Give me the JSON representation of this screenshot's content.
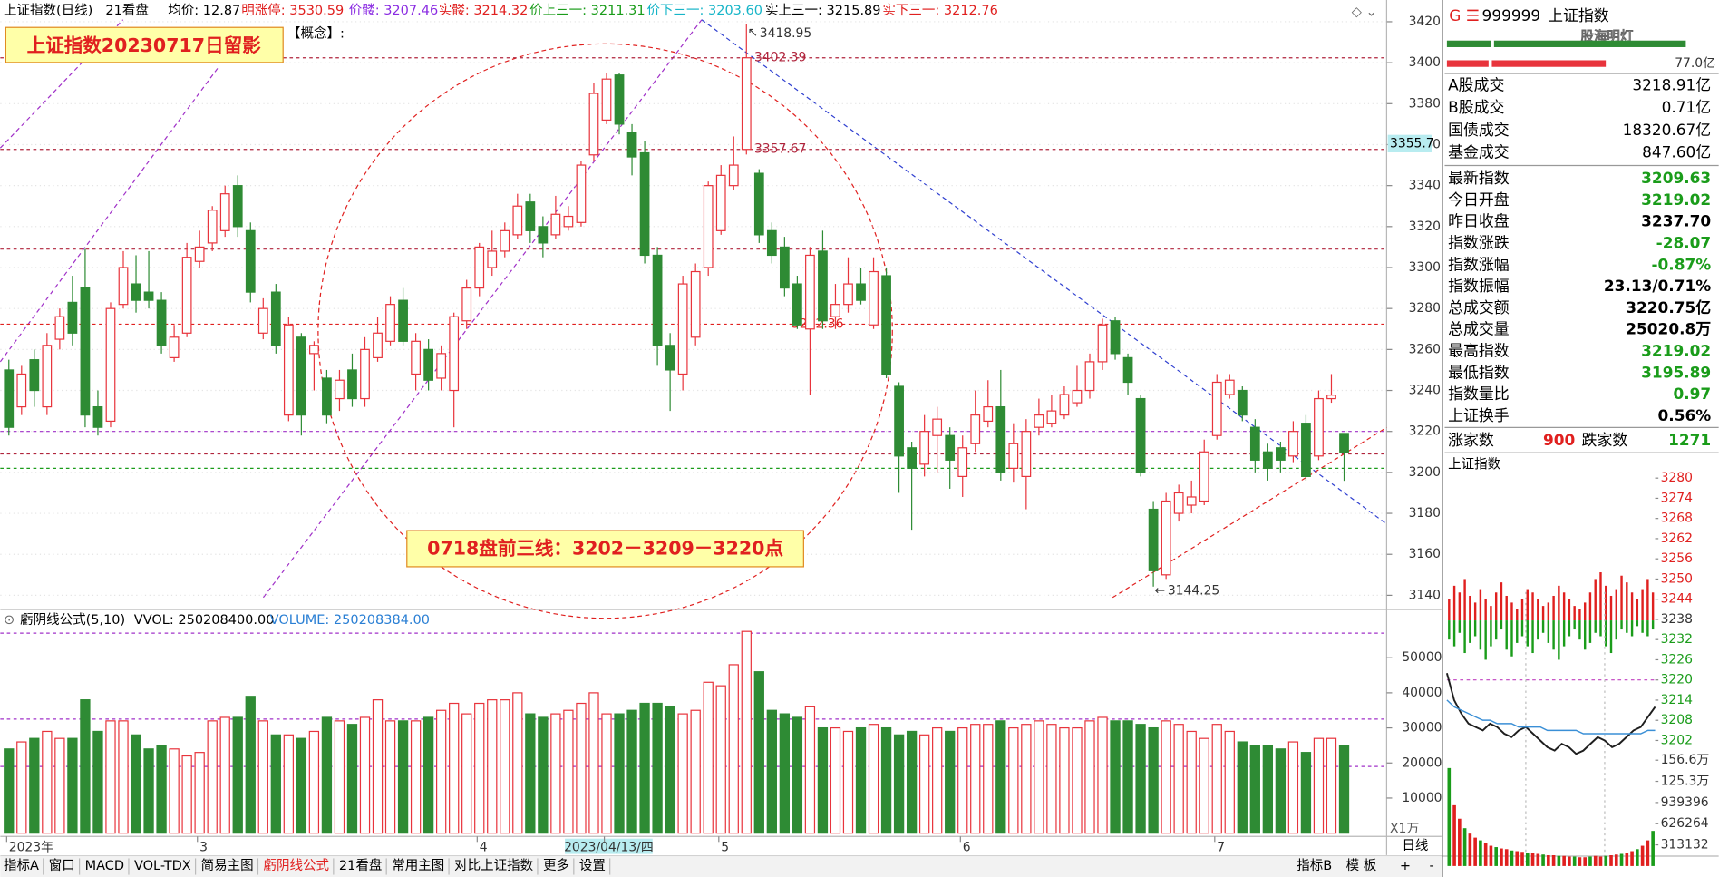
{
  "header": {
    "indicators": [
      {
        "text": "21看盘",
        "color": "#000000"
      },
      {
        "text": "均价: 12.87",
        "color": "#000000"
      },
      {
        "text": "明涨停: 3530.59",
        "color": "#e0201f"
      },
      {
        "text": "价髅: 3207.46",
        "color": "#8a2be2"
      },
      {
        "text": "实髅: 3214.32",
        "color": "#e0201f"
      },
      {
        "text": "价上三一: 3211.31",
        "color": "#1a9c1a"
      },
      {
        "text": "价下三一: 3203.60",
        "color": "#17b5c8"
      },
      {
        "text": "实上三一: 3215.89",
        "color": "#000000"
      },
      {
        "text": "实下三一: 3212.76",
        "color": "#e0201f"
      }
    ],
    "concept": "【概念】:",
    "note_title": "上证指数20230717日留影",
    "note_lines": "0718盘前三线：3202－3209－3220点",
    "cursor_price": "3355.7"
  },
  "chart_data": [
    {
      "type": "candlestick",
      "title": "上证指数(日线)",
      "up_color": "#e8343c",
      "down_color": "#2e8b34",
      "grid": true,
      "ylim": [
        3133.6,
        3429
      ],
      "yticks": [
        3140,
        3160,
        3180,
        3200,
        3220,
        3240,
        3260,
        3280,
        3300,
        3320,
        3340,
        3360,
        3380,
        3400,
        3420
      ],
      "categories": [
        "2023年",
        null,
        null,
        null,
        null,
        null,
        null,
        null,
        null,
        null,
        null,
        null,
        null,
        null,
        null,
        "3",
        null,
        null,
        null,
        null,
        null,
        null,
        null,
        null,
        null,
        null,
        null,
        null,
        null,
        null,
        null,
        null,
        null,
        null,
        null,
        null,
        null,
        "4",
        null,
        null,
        null,
        null,
        null,
        null,
        null,
        null,
        null,
        "2023/04/13/四",
        null,
        null,
        null,
        null,
        null,
        null,
        null,
        null,
        "5",
        null,
        null,
        null,
        null,
        null,
        null,
        null,
        null,
        null,
        null,
        null,
        null,
        null,
        null,
        null,
        null,
        null,
        null,
        "6",
        null,
        null,
        null,
        null,
        null,
        null,
        null,
        null,
        null,
        null,
        null,
        null,
        null,
        null,
        null,
        null,
        null,
        null,
        null,
        "7",
        null,
        null,
        null,
        null,
        null,
        null,
        null,
        null,
        null,
        null
      ],
      "open": [
        3250,
        3232,
        3255,
        3232,
        3265,
        3283,
        3290,
        3232,
        3225,
        3282,
        3292,
        3288,
        3284,
        3256,
        3268,
        3303,
        3312,
        3318,
        3340,
        3318,
        3268,
        3288,
        3228,
        3266,
        3258,
        3246,
        3236,
        3250,
        3236,
        3256,
        3264,
        3284,
        3248,
        3260,
        3246,
        3240,
        3274,
        3290,
        3300,
        3308,
        3316,
        3332,
        3320,
        3316,
        3320,
        3322,
        3355,
        3372,
        3394,
        3366,
        3356,
        3306,
        3262,
        3248,
        3266,
        3300,
        3318,
        3340,
        3357.67,
        3346,
        3318,
        3310,
        3292,
        3270,
        3308,
        3276,
        3282,
        3292,
        3272,
        3296,
        3242,
        3212,
        3204,
        3218,
        3218,
        3198,
        3214,
        3225,
        3232,
        3202,
        3198,
        3222,
        3224,
        3228,
        3234,
        3240,
        3254,
        3274,
        3256,
        3236,
        3182,
        3150,
        3180,
        3184,
        3186,
        3218,
        3238,
        3240,
        3222,
        3210,
        3212,
        3208,
        3224,
        3208,
        3236,
        3219.02
      ],
      "high": [
        3255,
        3252,
        3260,
        3268,
        3280,
        3296,
        3309,
        3240,
        3283,
        3308,
        3306,
        3308,
        3288,
        3272,
        3312,
        3318,
        3330,
        3340,
        3345,
        3322,
        3285,
        3292,
        3276,
        3268,
        3264,
        3250,
        3250,
        3258,
        3266,
        3276,
        3286,
        3290,
        3268,
        3265,
        3262,
        3278,
        3294,
        3312,
        3318,
        3322,
        3336,
        3336,
        3325,
        3335,
        3330,
        3352,
        3390,
        3395,
        3395,
        3370,
        3362,
        3310,
        3268,
        3296,
        3302,
        3342,
        3350,
        3364,
        3418.95,
        3348,
        3322,
        3315,
        3296,
        3310,
        3318,
        3292,
        3305,
        3300,
        3305,
        3300,
        3244,
        3215,
        3228,
        3232,
        3222,
        3218,
        3240,
        3245,
        3250,
        3224,
        3226,
        3236,
        3238,
        3242,
        3252,
        3258,
        3275,
        3276,
        3258,
        3238,
        3186,
        3190,
        3194,
        3196,
        3216,
        3248,
        3248,
        3242,
        3226,
        3214,
        3215,
        3225,
        3228,
        3240,
        3248,
        3219.02
      ],
      "low": [
        3218,
        3228,
        3232,
        3228,
        3260,
        3262,
        3222,
        3218,
        3222,
        3280,
        3278,
        3280,
        3258,
        3254,
        3266,
        3300,
        3308,
        3315,
        3315,
        3283,
        3265,
        3258,
        3225,
        3218,
        3240,
        3224,
        3230,
        3232,
        3232,
        3254,
        3262,
        3262,
        3240,
        3240,
        3240,
        3222,
        3270,
        3286,
        3296,
        3305,
        3314,
        3312,
        3305,
        3314,
        3318,
        3320,
        3352,
        3370,
        3365,
        3345,
        3302,
        3252,
        3230,
        3240,
        3262,
        3296,
        3316,
        3338,
        3355.2,
        3312,
        3302,
        3286,
        3270,
        3238,
        3270,
        3270,
        3278,
        3282,
        3270,
        3246,
        3190,
        3172,
        3198,
        3200,
        3192,
        3188,
        3210,
        3222,
        3196,
        3195,
        3182,
        3218,
        3222,
        3226,
        3232,
        3236,
        3250,
        3255,
        3238,
        3198,
        3144.25,
        3148,
        3176,
        3180,
        3184,
        3216,
        3236,
        3225,
        3200,
        3196,
        3200,
        3205,
        3196,
        3206,
        3234,
        3195.89
      ],
      "close": [
        3222,
        3248,
        3240,
        3262,
        3276,
        3268,
        3228,
        3222,
        3280,
        3300,
        3284,
        3284,
        3262,
        3266,
        3305,
        3310,
        3328,
        3336,
        3320,
        3288,
        3280,
        3262,
        3272,
        3228,
        3262,
        3228,
        3245,
        3236,
        3260,
        3268,
        3282,
        3264,
        3264,
        3245,
        3258,
        3276,
        3290,
        3310,
        3308,
        3318,
        3330,
        3318,
        3312,
        3326,
        3325,
        3350,
        3385,
        3392,
        3370,
        3354,
        3306,
        3262,
        3250,
        3292,
        3298,
        3340,
        3345,
        3350,
        3402.39,
        3316,
        3306,
        3290,
        3272,
        3306,
        3274,
        3282,
        3292,
        3284,
        3298,
        3248,
        3208,
        3202,
        3220,
        3226,
        3206,
        3212,
        3228,
        3232,
        3200,
        3214,
        3220,
        3228,
        3230,
        3238,
        3240,
        3254,
        3272,
        3258,
        3244,
        3200,
        3152,
        3186,
        3190,
        3188,
        3210,
        3244,
        3245,
        3228,
        3206,
        3202,
        3206,
        3220,
        3198,
        3236,
        3237.7,
        3209.63
      ],
      "hlines": [
        {
          "value": 3402.39,
          "color": "#b0243c",
          "label": true
        },
        {
          "value": 3357.67,
          "color": "#b0243c",
          "label": true
        },
        {
          "value": 3309,
          "color": "#b0243c"
        },
        {
          "value": 3272.36,
          "color": "#e0201f",
          "label": true
        },
        {
          "value": 3220,
          "color": "#a030c8"
        },
        {
          "value": 3209,
          "color": "#b0243c"
        },
        {
          "value": 3202,
          "color": "#1a9c1a"
        }
      ]
    },
    {
      "type": "bar",
      "title": "虧阴线公式(5,10)",
      "subtitle": "VVOL: 250208400.00",
      "volume_label": "VOLUME: 250208384.00",
      "unit": "X1万",
      "ylim": [
        0,
        57800
      ],
      "yticks": [
        10000,
        20000,
        30000,
        40000,
        50000
      ],
      "values": [
        24000,
        26000,
        27000,
        29000,
        27000,
        27000,
        38000,
        29000,
        32000,
        32000,
        28000,
        24000,
        25000,
        24000,
        22000,
        23000,
        32000,
        33000,
        33000,
        39000,
        32000,
        28000,
        28000,
        27000,
        29000,
        33000,
        32000,
        31000,
        33000,
        38000,
        32000,
        32000,
        32000,
        33000,
        35000,
        37000,
        34000,
        37000,
        38000,
        38000,
        40000,
        34000,
        33000,
        34000,
        35000,
        37000,
        40000,
        34000,
        34000,
        35000,
        37000,
        37000,
        36000,
        34000,
        35000,
        43000,
        42000,
        48000,
        57500,
        46000,
        35000,
        34000,
        33000,
        36000,
        30000,
        30000,
        29000,
        30000,
        31000,
        30000,
        28000,
        29000,
        28000,
        30000,
        29000,
        30000,
        31000,
        31000,
        32000,
        30000,
        31000,
        32000,
        31000,
        30000,
        30000,
        32000,
        33000,
        32000,
        32000,
        31000,
        30000,
        32000,
        31000,
        29000,
        27000,
        31000,
        29000,
        26000,
        25000,
        25000,
        24000,
        26000,
        23000,
        27000,
        27000,
        25020.8
      ],
      "hlines": [
        {
          "value": 57000,
          "color": "#a030c8"
        },
        {
          "value": 32500,
          "color": "#a030c8"
        },
        {
          "value": 19000,
          "color": "#a030c8"
        }
      ]
    },
    {
      "type": "line",
      "title": "上证指数",
      "ylim": [
        3194,
        3282
      ],
      "yticks": [
        3202,
        3208,
        3214,
        3220,
        3226,
        3232,
        3238,
        3244,
        3250,
        3256,
        3262,
        3268,
        3274,
        3280
      ],
      "series": [
        {
          "color": "#1e1e1e",
          "values": [
            3222,
            3214,
            3210,
            3207,
            3206,
            3205,
            3207,
            3206,
            3204,
            3203,
            3205,
            3206,
            3204,
            3202,
            3200,
            3199,
            3201,
            3200,
            3198,
            3199,
            3201,
            3203,
            3202,
            3200,
            3201,
            3203,
            3205,
            3206,
            3209,
            3212
          ]
        },
        {
          "color": "#3a8fd6",
          "values": [
            3214,
            3212,
            3211,
            3210,
            3209,
            3208,
            3208,
            3207,
            3207,
            3207,
            3206,
            3206,
            3206,
            3206,
            3205,
            3205,
            3205,
            3205,
            3205,
            3204,
            3204,
            3204,
            3204,
            3204,
            3204,
            3204,
            3204,
            3204,
            3205,
            3205
          ]
        }
      ],
      "breadth_up": [
        3244,
        3248,
        3246,
        3250,
        3245,
        3243,
        3247,
        3244,
        3242,
        3246,
        3249,
        3245,
        3243,
        3241,
        3244,
        3247,
        3246,
        3244,
        3242,
        3243,
        3245,
        3248,
        3246,
        3244,
        3242,
        3241,
        3243,
        3246,
        3250,
        3252,
        3248,
        3245,
        3247,
        3251,
        3249,
        3246,
        3244,
        3247,
        3250,
        3246
      ],
      "breadth_down": [
        3232,
        3230,
        3234,
        3228,
        3231,
        3233,
        3229,
        3226,
        3230,
        3232,
        3235,
        3229,
        3227,
        3231,
        3233,
        3230,
        3228,
        3232,
        3234,
        3231,
        3229,
        3226,
        3230,
        3233,
        3235,
        3232,
        3229,
        3231,
        3234,
        3233,
        3230,
        3228,
        3232,
        3235,
        3234,
        3233,
        3236,
        3234,
        3233,
        3235
      ],
      "hlines": [
        {
          "value": 3220,
          "color": "#c040c0"
        }
      ]
    },
    {
      "type": "bar",
      "ylim": [
        0,
        1622000
      ],
      "yticks": [
        {
          "value": 313132,
          "label": "313132"
        },
        {
          "value": 626264,
          "label": "626264"
        },
        {
          "value": 939396,
          "label": "939396"
        },
        {
          "value": 1253000,
          "label": "125.3万"
        },
        {
          "value": 1566000,
          "label": "156.6万"
        }
      ],
      "values": [
        1450000,
        900000,
        700000,
        560000,
        480000,
        420000,
        380000,
        340000,
        300000,
        280000,
        260000,
        250000,
        230000,
        220000,
        210000,
        200000,
        190000,
        180000,
        170000,
        160000,
        160000,
        150000,
        150000,
        140000,
        140000,
        130000,
        130000,
        140000,
        150000,
        140000,
        150000,
        160000,
        170000,
        180000,
        200000,
        220000,
        250000,
        300000,
        380000,
        520000
      ]
    }
  ],
  "quote_panel": {
    "code": "999999",
    "name": "上证指数",
    "watermark": "股海明灯",
    "bar_value": "77.0亿",
    "rows": [
      {
        "label": "A股成交",
        "value": "3218.91亿",
        "color": "#000000"
      },
      {
        "label": "B股成交",
        "value": "0.71亿",
        "color": "#000000"
      },
      {
        "label": "国债成交",
        "value": "18320.67亿",
        "color": "#000000"
      },
      {
        "label": "基金成交",
        "value": "847.60亿",
        "color": "#000000"
      },
      {
        "label": "最新指数",
        "value": "3209.63",
        "color": "#1a9c1a"
      },
      {
        "label": "今日开盘",
        "value": "3219.02",
        "color": "#1a9c1a"
      },
      {
        "label": "昨日收盘",
        "value": "3237.70",
        "color": "#000000"
      },
      {
        "label": "指数涨跌",
        "value": "-28.07",
        "color": "#1a9c1a"
      },
      {
        "label": "指数涨幅",
        "value": "-0.87%",
        "color": "#1a9c1a"
      },
      {
        "label": "指数振幅",
        "value": "23.13/0.71%",
        "color": "#000000"
      },
      {
        "label": "总成交额",
        "value": "3220.75亿",
        "color": "#000000"
      },
      {
        "label": "总成交量",
        "value": "25020.8万",
        "color": "#000000"
      },
      {
        "label": "最高指数",
        "value": "3219.02",
        "color": "#1a9c1a"
      },
      {
        "label": "最低指数",
        "value": "3195.89",
        "color": "#1a9c1a"
      },
      {
        "label": "指数量比",
        "value": "0.97",
        "color": "#1a9c1a"
      },
      {
        "label": "上证换手",
        "value": "0.56%",
        "color": "#000000"
      }
    ],
    "up_label": "涨家数",
    "up": 900,
    "down_label": "跌家数",
    "down": 1271
  },
  "footer": {
    "period": "日线",
    "tabs": [
      {
        "text": "指标A"
      },
      {
        "text": "窗口"
      },
      {
        "text": "MACD"
      },
      {
        "text": "VOL-TDX"
      },
      {
        "text": "简易主图"
      },
      {
        "text": "虧阴线公式",
        "color": "#e0201f"
      },
      {
        "text": "21看盘"
      },
      {
        "text": "常用主图"
      },
      {
        "text": "对比上证指数"
      },
      {
        "text": "更多"
      },
      {
        "text": "设置"
      }
    ],
    "right_tabs": [
      {
        "text": "指标B"
      },
      {
        "text": "模 板"
      },
      {
        "text": "+"
      },
      {
        "text": "-"
      }
    ]
  }
}
